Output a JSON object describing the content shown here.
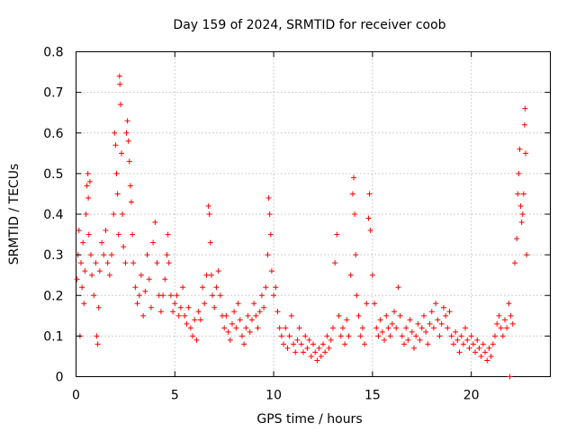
{
  "chart_data": {
    "type": "scatter",
    "title": "Day 159 of 2024, SRMTID for receiver coob",
    "xlabel": "GPS time / hours",
    "ylabel": "SRMTID / TECUs",
    "xlim": [
      0,
      24
    ],
    "ylim": [
      0,
      0.8
    ],
    "xticks": [
      0,
      5,
      10,
      15,
      20
    ],
    "yticks": [
      0,
      0.1,
      0.2,
      0.3,
      0.4,
      0.5,
      0.6,
      0.7,
      0.8
    ],
    "grid": true,
    "marker": "+",
    "colors": {
      "series": "#ff0000",
      "grid": "#a0a0a0",
      "axis": "#000000"
    },
    "series": [
      {
        "name": "SRMTID",
        "points": [
          [
            0.05,
            0.24
          ],
          [
            0.1,
            0.3
          ],
          [
            0.15,
            0.36
          ],
          [
            0.2,
            0.1
          ],
          [
            0.25,
            0.28
          ],
          [
            0.3,
            0.22
          ],
          [
            0.35,
            0.33
          ],
          [
            0.4,
            0.18
          ],
          [
            0.45,
            0.26
          ],
          [
            0.5,
            0.4
          ],
          [
            0.55,
            0.47
          ],
          [
            0.6,
            0.5
          ],
          [
            0.62,
            0.44
          ],
          [
            0.65,
            0.35
          ],
          [
            0.7,
            0.48
          ],
          [
            0.75,
            0.3
          ],
          [
            0.8,
            0.25
          ],
          [
            0.9,
            0.2
          ],
          [
            1.0,
            0.28
          ],
          [
            1.05,
            0.1
          ],
          [
            1.1,
            0.08
          ],
          [
            1.15,
            0.17
          ],
          [
            1.2,
            0.26
          ],
          [
            1.3,
            0.33
          ],
          [
            1.4,
            0.3
          ],
          [
            1.5,
            0.36
          ],
          [
            1.6,
            0.28
          ],
          [
            1.7,
            0.25
          ],
          [
            1.8,
            0.3
          ],
          [
            1.9,
            0.4
          ],
          [
            1.95,
            0.6
          ],
          [
            2.0,
            0.57
          ],
          [
            2.05,
            0.5
          ],
          [
            2.1,
            0.45
          ],
          [
            2.15,
            0.35
          ],
          [
            2.2,
            0.74
          ],
          [
            2.22,
            0.72
          ],
          [
            2.25,
            0.67
          ],
          [
            2.3,
            0.55
          ],
          [
            2.35,
            0.4
          ],
          [
            2.4,
            0.32
          ],
          [
            2.5,
            0.28
          ],
          [
            2.55,
            0.6
          ],
          [
            2.6,
            0.63
          ],
          [
            2.65,
            0.58
          ],
          [
            2.7,
            0.53
          ],
          [
            2.75,
            0.47
          ],
          [
            2.8,
            0.43
          ],
          [
            2.85,
            0.35
          ],
          [
            2.9,
            0.28
          ],
          [
            3.0,
            0.22
          ],
          [
            3.1,
            0.18
          ],
          [
            3.2,
            0.2
          ],
          [
            3.3,
            0.25
          ],
          [
            3.4,
            0.15
          ],
          [
            3.5,
            0.21
          ],
          [
            3.6,
            0.3
          ],
          [
            3.7,
            0.24
          ],
          [
            3.8,
            0.17
          ],
          [
            3.9,
            0.33
          ],
          [
            4.0,
            0.38
          ],
          [
            4.1,
            0.28
          ],
          [
            4.2,
            0.2
          ],
          [
            4.3,
            0.16
          ],
          [
            4.4,
            0.2
          ],
          [
            4.5,
            0.24
          ],
          [
            4.6,
            0.3
          ],
          [
            4.65,
            0.35
          ],
          [
            4.7,
            0.28
          ],
          [
            4.8,
            0.2
          ],
          [
            4.9,
            0.16
          ],
          [
            5.0,
            0.18
          ],
          [
            5.1,
            0.2
          ],
          [
            5.2,
            0.15
          ],
          [
            5.3,
            0.17
          ],
          [
            5.4,
            0.22
          ],
          [
            5.5,
            0.15
          ],
          [
            5.6,
            0.13
          ],
          [
            5.7,
            0.17
          ],
          [
            5.8,
            0.12
          ],
          [
            5.9,
            0.1
          ],
          [
            6.0,
            0.14
          ],
          [
            6.1,
            0.09
          ],
          [
            6.2,
            0.16
          ],
          [
            6.3,
            0.14
          ],
          [
            6.4,
            0.22
          ],
          [
            6.5,
            0.18
          ],
          [
            6.6,
            0.25
          ],
          [
            6.7,
            0.42
          ],
          [
            6.75,
            0.4
          ],
          [
            6.8,
            0.33
          ],
          [
            6.85,
            0.25
          ],
          [
            6.9,
            0.2
          ],
          [
            7.0,
            0.17
          ],
          [
            7.1,
            0.22
          ],
          [
            7.2,
            0.26
          ],
          [
            7.3,
            0.2
          ],
          [
            7.4,
            0.15
          ],
          [
            7.5,
            0.12
          ],
          [
            7.6,
            0.15
          ],
          [
            7.7,
            0.11
          ],
          [
            7.8,
            0.09
          ],
          [
            7.9,
            0.13
          ],
          [
            8.0,
            0.16
          ],
          [
            8.1,
            0.12
          ],
          [
            8.2,
            0.18
          ],
          [
            8.3,
            0.14
          ],
          [
            8.4,
            0.1
          ],
          [
            8.5,
            0.08
          ],
          [
            8.6,
            0.12
          ],
          [
            8.7,
            0.15
          ],
          [
            8.8,
            0.11
          ],
          [
            8.9,
            0.14
          ],
          [
            9.0,
            0.18
          ],
          [
            9.1,
            0.15
          ],
          [
            9.2,
            0.12
          ],
          [
            9.3,
            0.16
          ],
          [
            9.4,
            0.2
          ],
          [
            9.5,
            0.17
          ],
          [
            9.6,
            0.22
          ],
          [
            9.7,
            0.3
          ],
          [
            9.75,
            0.44
          ],
          [
            9.8,
            0.4
          ],
          [
            9.85,
            0.35
          ],
          [
            9.9,
            0.26
          ],
          [
            10.0,
            0.2
          ],
          [
            10.1,
            0.22
          ],
          [
            10.2,
            0.16
          ],
          [
            10.3,
            0.12
          ],
          [
            10.4,
            0.1
          ],
          [
            10.5,
            0.08
          ],
          [
            10.6,
            0.12
          ],
          [
            10.7,
            0.07
          ],
          [
            10.8,
            0.1
          ],
          [
            10.9,
            0.15
          ],
          [
            11.0,
            0.08
          ],
          [
            11.1,
            0.06
          ],
          [
            11.2,
            0.09
          ],
          [
            11.3,
            0.12
          ],
          [
            11.4,
            0.08
          ],
          [
            11.5,
            0.06
          ],
          [
            11.6,
            0.1
          ],
          [
            11.7,
            0.07
          ],
          [
            11.8,
            0.09
          ],
          [
            11.9,
            0.05
          ],
          [
            12.0,
            0.08
          ],
          [
            12.1,
            0.06
          ],
          [
            12.2,
            0.04
          ],
          [
            12.3,
            0.07
          ],
          [
            12.4,
            0.05
          ],
          [
            12.5,
            0.08
          ],
          [
            12.6,
            0.06
          ],
          [
            12.7,
            0.1
          ],
          [
            12.8,
            0.07
          ],
          [
            12.9,
            0.09
          ],
          [
            13.0,
            0.12
          ],
          [
            13.1,
            0.28
          ],
          [
            13.2,
            0.35
          ],
          [
            13.3,
            0.15
          ],
          [
            13.4,
            0.1
          ],
          [
            13.5,
            0.12
          ],
          [
            13.6,
            0.08
          ],
          [
            13.7,
            0.14
          ],
          [
            13.8,
            0.1
          ],
          [
            13.9,
            0.25
          ],
          [
            14.0,
            0.45
          ],
          [
            14.05,
            0.49
          ],
          [
            14.1,
            0.4
          ],
          [
            14.15,
            0.3
          ],
          [
            14.2,
            0.2
          ],
          [
            14.3,
            0.15
          ],
          [
            14.4,
            0.1
          ],
          [
            14.5,
            0.12
          ],
          [
            14.6,
            0.08
          ],
          [
            14.7,
            0.18
          ],
          [
            14.8,
            0.39
          ],
          [
            14.85,
            0.45
          ],
          [
            14.9,
            0.36
          ],
          [
            15.0,
            0.25
          ],
          [
            15.1,
            0.18
          ],
          [
            15.2,
            0.12
          ],
          [
            15.3,
            0.1
          ],
          [
            15.4,
            0.14
          ],
          [
            15.5,
            0.11
          ],
          [
            15.6,
            0.09
          ],
          [
            15.7,
            0.15
          ],
          [
            15.8,
            0.12
          ],
          [
            15.9,
            0.1
          ],
          [
            16.0,
            0.13
          ],
          [
            16.1,
            0.16
          ],
          [
            16.2,
            0.12
          ],
          [
            16.3,
            0.22
          ],
          [
            16.4,
            0.15
          ],
          [
            16.5,
            0.1
          ],
          [
            16.6,
            0.08
          ],
          [
            16.7,
            0.12
          ],
          [
            16.8,
            0.09
          ],
          [
            16.9,
            0.14
          ],
          [
            17.0,
            0.11
          ],
          [
            17.1,
            0.07
          ],
          [
            17.2,
            0.1
          ],
          [
            17.3,
            0.13
          ],
          [
            17.4,
            0.09
          ],
          [
            17.5,
            0.12
          ],
          [
            17.6,
            0.15
          ],
          [
            17.7,
            0.11
          ],
          [
            17.8,
            0.08
          ],
          [
            17.9,
            0.13
          ],
          [
            18.0,
            0.16
          ],
          [
            18.1,
            0.12
          ],
          [
            18.2,
            0.18
          ],
          [
            18.3,
            0.14
          ],
          [
            18.4,
            0.1
          ],
          [
            18.5,
            0.13
          ],
          [
            18.6,
            0.17
          ],
          [
            18.7,
            0.15
          ],
          [
            18.8,
            0.12
          ],
          [
            18.9,
            0.16
          ],
          [
            19.0,
            0.1
          ],
          [
            19.1,
            0.08
          ],
          [
            19.2,
            0.11
          ],
          [
            19.3,
            0.09
          ],
          [
            19.4,
            0.06
          ],
          [
            19.5,
            0.1
          ],
          [
            19.6,
            0.08
          ],
          [
            19.7,
            0.12
          ],
          [
            19.8,
            0.09
          ],
          [
            19.9,
            0.07
          ],
          [
            20.0,
            0.1
          ],
          [
            20.1,
            0.08
          ],
          [
            20.2,
            0.06
          ],
          [
            20.3,
            0.09
          ],
          [
            20.4,
            0.07
          ],
          [
            20.5,
            0.05
          ],
          [
            20.6,
            0.08
          ],
          [
            20.7,
            0.06
          ],
          [
            20.8,
            0.04
          ],
          [
            20.9,
            0.07
          ],
          [
            21.0,
            0.05
          ],
          [
            21.1,
            0.08
          ],
          [
            21.2,
            0.1
          ],
          [
            21.3,
            0.13
          ],
          [
            21.4,
            0.15
          ],
          [
            21.5,
            0.12
          ],
          [
            21.6,
            0.1
          ],
          [
            21.7,
            0.14
          ],
          [
            21.8,
            0.12
          ],
          [
            21.9,
            0.18
          ],
          [
            22.0,
            0.15
          ],
          [
            22.1,
            0.13
          ],
          [
            22.2,
            0.28
          ],
          [
            22.3,
            0.34
          ],
          [
            22.35,
            0.45
          ],
          [
            22.4,
            0.5
          ],
          [
            22.45,
            0.56
          ],
          [
            22.5,
            0.42
          ],
          [
            22.55,
            0.38
          ],
          [
            22.6,
            0.4
          ],
          [
            22.65,
            0.45
          ],
          [
            22.7,
            0.62
          ],
          [
            22.72,
            0.66
          ],
          [
            22.75,
            0.55
          ],
          [
            22.8,
            0.3
          ],
          [
            21.95,
            0.0
          ]
        ]
      }
    ]
  }
}
